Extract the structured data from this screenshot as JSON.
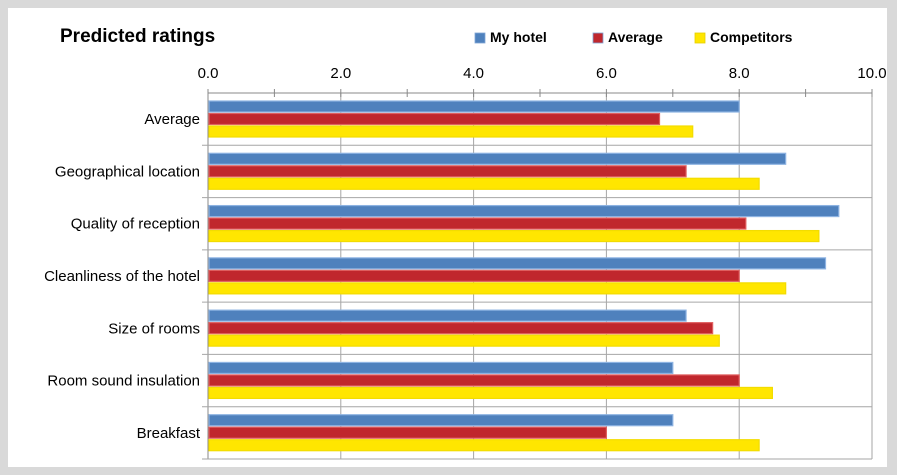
{
  "chart_data": {
    "type": "bar",
    "orientation": "horizontal",
    "title": "Predicted ratings",
    "xlabel": "",
    "ylabel": "",
    "xlim": [
      0,
      10
    ],
    "xticks": [
      "0.0",
      "2.0",
      "4.0",
      "6.0",
      "8.0",
      "10.0"
    ],
    "axis_position": "top",
    "grid": "vertical lines at major ticks, horizontal separators between categories",
    "legend_position": "top",
    "categories": [
      "Average",
      "Geographical location",
      "Quality of reception",
      "Cleanliness of the hotel",
      "Size of rooms",
      "Room sound insulation",
      "Breakfast"
    ],
    "series": [
      {
        "name": "My hotel",
        "color": "#4f81bd",
        "values": [
          8.0,
          8.7,
          9.5,
          9.3,
          7.2,
          7.0,
          7.0
        ]
      },
      {
        "name": "Average",
        "color": "#c0272d",
        "values": [
          6.8,
          7.2,
          8.1,
          8.0,
          7.6,
          8.0,
          6.0
        ]
      },
      {
        "name": "Competitors",
        "color": "#ffe600",
        "values": [
          7.3,
          8.3,
          9.2,
          8.7,
          7.7,
          8.5,
          8.3
        ]
      }
    ]
  }
}
